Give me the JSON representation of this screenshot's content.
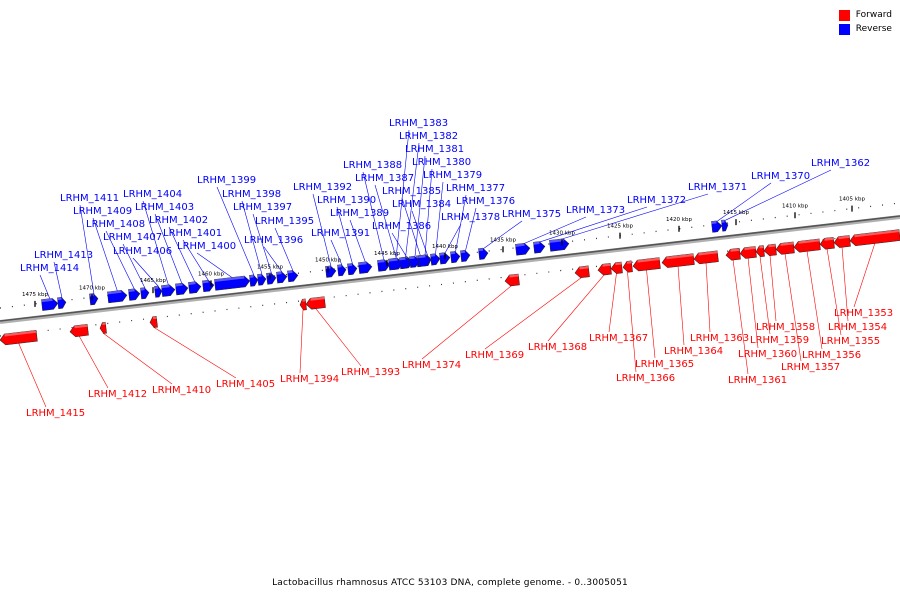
{
  "legend": [
    {
      "label": "Forward",
      "color": "#ff0000"
    },
    {
      "label": "Reverse",
      "color": "#0000ff"
    }
  ],
  "footer": {
    "caption": "Lactobacillus rhamnosus ATCC 53103 DNA, complete genome. - 0..3005051"
  },
  "colors": {
    "forward": "#ff0000",
    "reverse": "#0000ff",
    "backbone": "#808080"
  },
  "ticks": [
    "1475 kbp",
    "1470 kbp",
    "1465 kbp",
    "1460 kbp",
    "1455 kbp",
    "1450 kbp",
    "1445 kbp",
    "1440 kbp",
    "1435 kbp",
    "1430 kbp",
    "1425 kbp",
    "1420 kbp",
    "1415 kbp",
    "1410 kbp",
    "1405 kbp"
  ],
  "reverse_genes": [
    "LRHM_1414",
    "LRHM_1413",
    "LRHM_1411",
    "LRHM_1409",
    "LRHM_1408",
    "LRHM_1407",
    "LRHM_1406",
    "LRHM_1404",
    "LRHM_1403",
    "LRHM_1402",
    "LRHM_1401",
    "LRHM_1400",
    "LRHM_1399",
    "LRHM_1398",
    "LRHM_1397",
    "LRHM_1396",
    "LRHM_1395",
    "LRHM_1392",
    "LRHM_1391",
    "LRHM_1390",
    "LRHM_1389",
    "LRHM_1388",
    "LRHM_1387",
    "LRHM_1386",
    "LRHM_1385",
    "LRHM_1384",
    "LRHM_1383",
    "LRHM_1382",
    "LRHM_1381",
    "LRHM_1380",
    "LRHM_1379",
    "LRHM_1378",
    "LRHM_1377",
    "LRHM_1376",
    "LRHM_1375",
    "LRHM_1373",
    "LRHM_1372",
    "LRHM_1371",
    "LRHM_1370",
    "LRHM_1362"
  ],
  "forward_genes": [
    "LRHM_1415",
    "LRHM_1412",
    "LRHM_1410",
    "LRHM_1405",
    "LRHM_1394",
    "LRHM_1393",
    "LRHM_1374",
    "LRHM_1369",
    "LRHM_1368",
    "LRHM_1367",
    "LRHM_1366",
    "LRHM_1365",
    "LRHM_1364",
    "LRHM_1363",
    "LRHM_1361",
    "LRHM_1360",
    "LRHM_1359",
    "LRHM_1358",
    "LRHM_1357",
    "LRHM_1356",
    "LRHM_1355",
    "LRHM_1354",
    "LRHM_1353"
  ]
}
